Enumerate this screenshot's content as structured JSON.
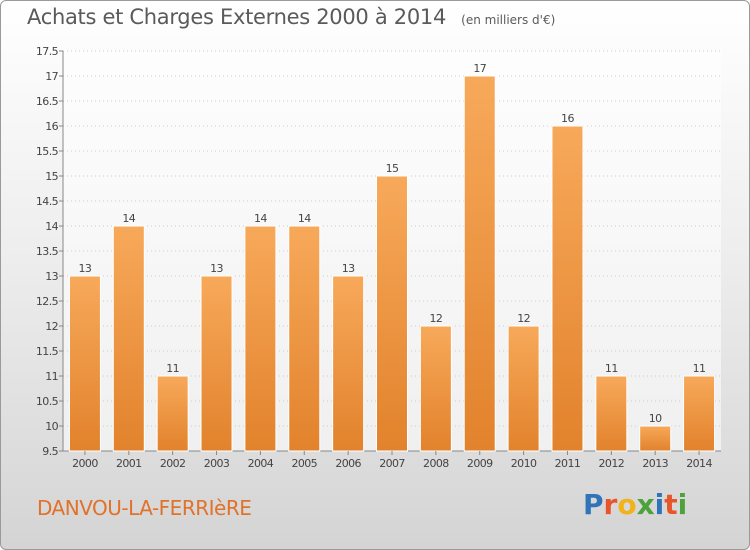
{
  "title": "Achats et Charges Externes 2000 à 2014",
  "unit": "(en milliers d'€)",
  "commune": "DANVOU-LA-FERRIèRE",
  "logo": {
    "letters": [
      "P",
      "r",
      "o",
      "x",
      "i",
      "t",
      "i"
    ],
    "colors": [
      "#2f74b8",
      "#e8552a",
      "#f2b21c",
      "#4ea23c",
      "#2f74b8",
      "#e8552a",
      "#4ea23c"
    ]
  },
  "colors": {
    "bar_light": "#f7a95a",
    "bar_dark": "#e2822c",
    "axis": "#888888",
    "grid": "#cccccc",
    "text": "#444444"
  },
  "chart_data": {
    "type": "bar",
    "title": "Achats et Charges Externes 2000 à 2014",
    "categories": [
      "2000",
      "2001",
      "2002",
      "2003",
      "2004",
      "2005",
      "2006",
      "2007",
      "2008",
      "2009",
      "2010",
      "2011",
      "2012",
      "2013",
      "2014"
    ],
    "values": [
      13,
      14,
      11,
      13,
      14,
      14,
      13,
      15,
      12,
      17,
      12,
      16,
      11,
      10,
      11
    ],
    "value_labels": [
      "13",
      "14",
      "11",
      "13",
      "14",
      "14",
      "13",
      "15",
      "12",
      "17",
      "12",
      "16",
      "11",
      "10",
      "11"
    ],
    "ylim": [
      9.5,
      17.5
    ],
    "yticks": [
      9.5,
      10,
      10.5,
      11,
      11.5,
      12,
      12.5,
      13,
      13.5,
      14,
      14.5,
      15,
      15.5,
      16,
      16.5,
      17,
      17.5
    ],
    "ytick_labels": [
      "9.5",
      "10",
      "10.5",
      "11",
      "11.5",
      "12",
      "12.5",
      "13",
      "13.5",
      "14",
      "14.5",
      "15",
      "15.5",
      "16",
      "16.5",
      "17",
      "17.5"
    ],
    "grid": true,
    "legend": "none"
  }
}
